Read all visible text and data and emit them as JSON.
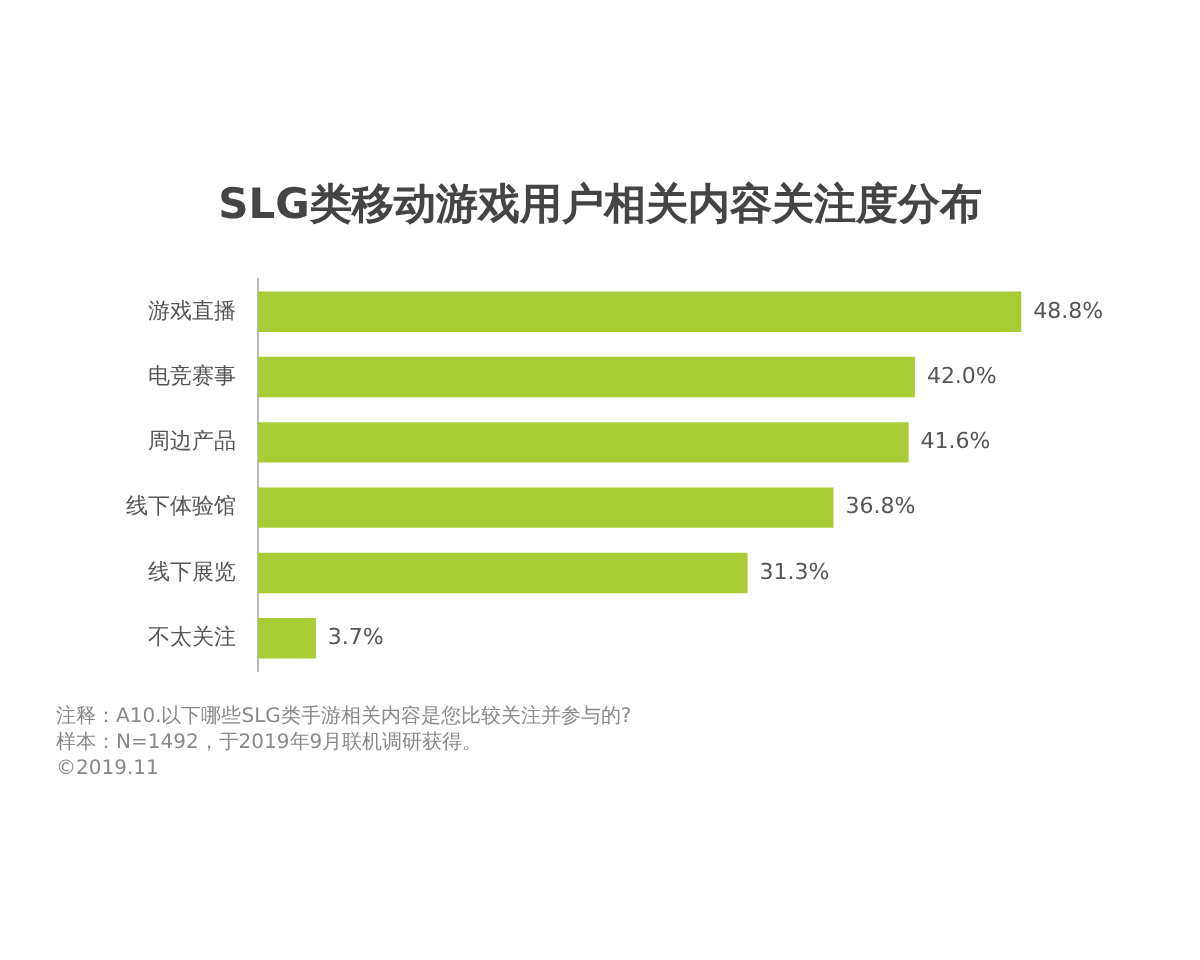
{
  "chart_data": {
    "type": "bar",
    "orientation": "horizontal",
    "title": "SLG类移动游戏用户相关内容关注度分布",
    "categories": [
      "游戏直播",
      "电竞赛事",
      "周边产品",
      "线下体验馆",
      "线下展览",
      "不太关注"
    ],
    "values": [
      48.8,
      42.0,
      41.6,
      36.8,
      31.3,
      3.7
    ],
    "value_labels": [
      "48.8%",
      "42.0%",
      "41.6%",
      "36.8%",
      "31.3%",
      "3.7%"
    ],
    "color": "#a8cc35",
    "legend": false,
    "tick_labels": "y",
    "annotations": [
      "注释：A10.以下哪些SLG类手游相关内容是您比较关注并参与的?",
      "样本：N=1492，于2019年9月联机调研获得。",
      "©2019.11"
    ]
  }
}
